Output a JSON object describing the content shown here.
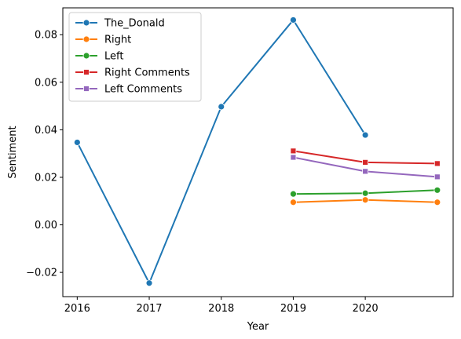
{
  "chart_data": {
    "type": "line",
    "xlabel": "Year",
    "ylabel": "Sentiment",
    "xlim": [
      2015.8,
      2021.22
    ],
    "ylim": [
      -0.0302,
      0.0913
    ],
    "x_ticks": [
      2016,
      2017,
      2018,
      2019,
      2020
    ],
    "x_tick_labels": [
      "2016",
      "2017",
      "2018",
      "2019",
      "2020"
    ],
    "y_ticks": [
      -0.02,
      0.0,
      0.02,
      0.04,
      0.06,
      0.08
    ],
    "y_tick_labels": [
      "−0.02",
      "0.00",
      "0.02",
      "0.04",
      "0.06",
      "0.08"
    ],
    "grid": false,
    "legend_position": "top-left",
    "series": [
      {
        "name": "The_Donald",
        "color": "#1f77b4",
        "marker": "circle",
        "x": [
          2016,
          2017,
          2018,
          2019,
          2020
        ],
        "y": [
          0.0347,
          -0.0245,
          0.0497,
          0.0862,
          0.0378
        ]
      },
      {
        "name": "Right",
        "color": "#ff7f0e",
        "marker": "circle",
        "x": [
          2019,
          2020,
          2021
        ],
        "y": [
          0.0095,
          0.0105,
          0.0095
        ]
      },
      {
        "name": "Left",
        "color": "#2ca02c",
        "marker": "circle",
        "x": [
          2019,
          2020,
          2021
        ],
        "y": [
          0.013,
          0.0133,
          0.0146
        ]
      },
      {
        "name": "Right Comments",
        "color": "#d62728",
        "marker": "square",
        "x": [
          2019,
          2020,
          2021
        ],
        "y": [
          0.0311,
          0.0263,
          0.0258
        ]
      },
      {
        "name": "Left Comments",
        "color": "#9467bd",
        "marker": "square",
        "x": [
          2019,
          2020,
          2021
        ],
        "y": [
          0.0284,
          0.0225,
          0.0202
        ]
      }
    ]
  }
}
